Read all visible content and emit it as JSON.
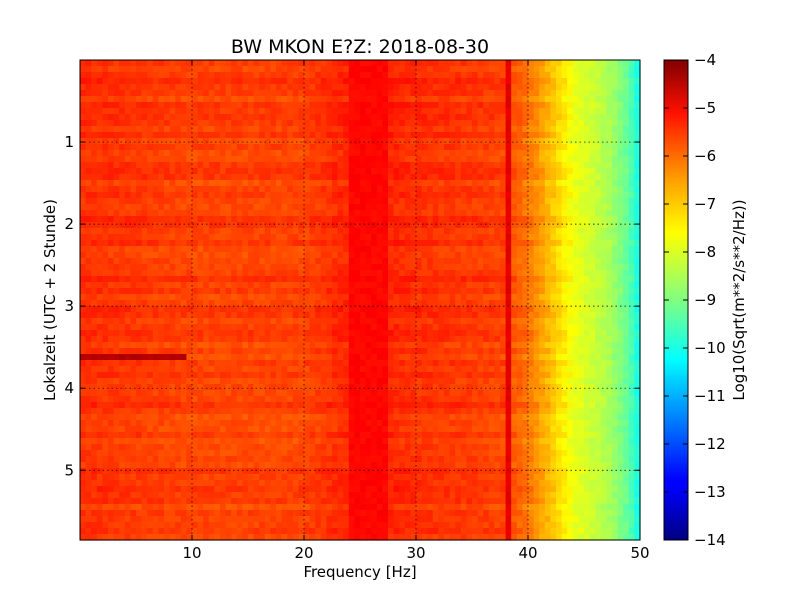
{
  "chart_data": {
    "type": "heatmap",
    "title": "BW MKON E?Z: 2018-08-30",
    "xlabel": "Frequency [Hz]",
    "ylabel": "Lokalzeit (UTC + 2 Stunde)",
    "xlim": [
      0,
      50
    ],
    "ylim": [
      5.85,
      0
    ],
    "y_inverted": true,
    "grid": true,
    "x_ticks": [
      10,
      20,
      30,
      40,
      50
    ],
    "y_ticks": [
      1,
      2,
      3,
      4,
      5
    ],
    "colormap": "jet",
    "colorbar": {
      "label": "Log10(Sqrt(m**2/s**2/Hz))",
      "range": [
        -14,
        -4
      ],
      "ticks": [
        -4,
        -5,
        -6,
        -7,
        -8,
        -9,
        -10,
        -11,
        -12,
        -13,
        -14
      ]
    },
    "frequency_profile": {
      "frequency_hz": [
        0,
        5,
        10,
        15,
        20,
        25,
        30,
        35,
        38,
        40,
        42,
        43,
        44,
        45,
        47,
        48,
        49,
        50
      ],
      "log_amplitude": [
        -5.7,
        -5.8,
        -5.9,
        -5.9,
        -5.9,
        -5.5,
        -5.7,
        -5.8,
        -5.9,
        -6.4,
        -7.1,
        -7.5,
        -7.9,
        -8.1,
        -8.5,
        -8.9,
        -9.3,
        -10.2
      ]
    },
    "features": [
      {
        "name": "broadband band",
        "freq_hz": [
          24,
          27
        ],
        "log_amplitude": -5.3
      },
      {
        "name": "narrow line",
        "freq_hz": [
          38,
          38.3
        ],
        "log_amplitude": -5.0
      },
      {
        "name": "transient",
        "freq_hz": [
          0,
          9
        ],
        "time": [
          3.55,
          3.65
        ],
        "log_amplitude": -4.5
      }
    ]
  }
}
